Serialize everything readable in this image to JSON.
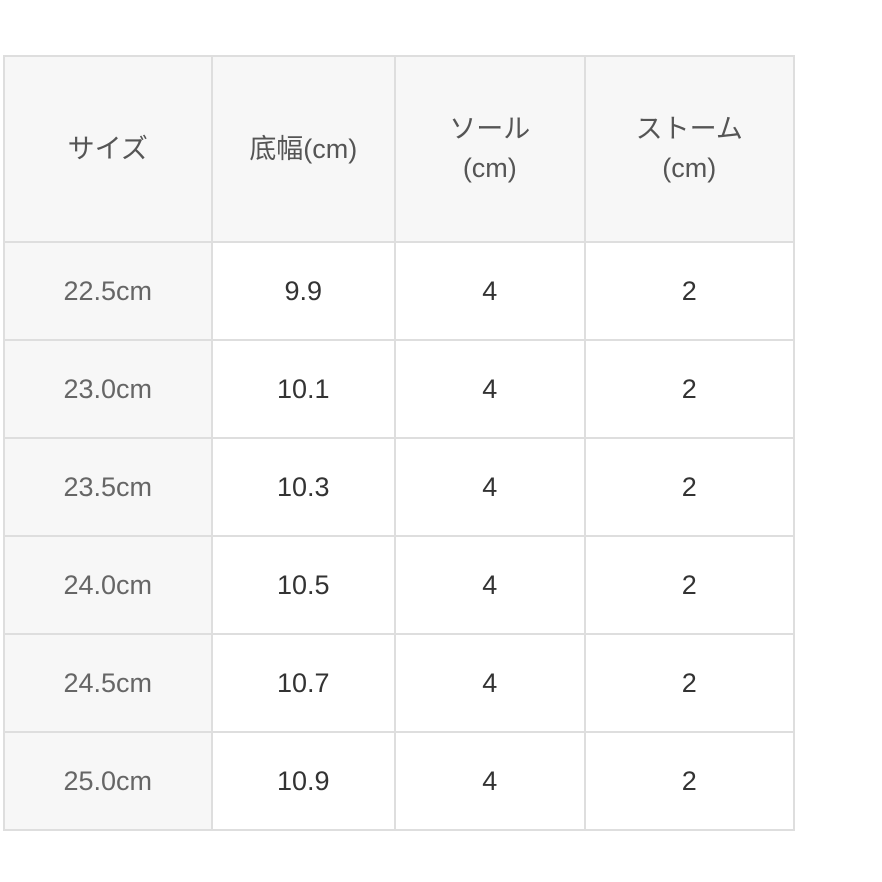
{
  "table": {
    "headers": [
      {
        "lines": [
          "サイズ"
        ]
      },
      {
        "lines": [
          "底幅(cm)"
        ]
      },
      {
        "lines": [
          "ソール",
          "(cm)"
        ]
      },
      {
        "lines": [
          "ストーム",
          "(cm)"
        ]
      }
    ],
    "rows": [
      [
        "22.5cm",
        "9.9",
        "4",
        "2"
      ],
      [
        "23.0cm",
        "10.1",
        "4",
        "2"
      ],
      [
        "23.5cm",
        "10.3",
        "4",
        "2"
      ],
      [
        "24.0cm",
        "10.5",
        "4",
        "2"
      ],
      [
        "24.5cm",
        "10.7",
        "4",
        "2"
      ],
      [
        "25.0cm",
        "10.9",
        "4",
        "2"
      ]
    ]
  },
  "colors": {
    "header_bg": "#f7f7f7",
    "border": "#dedede",
    "text": "#333333"
  }
}
